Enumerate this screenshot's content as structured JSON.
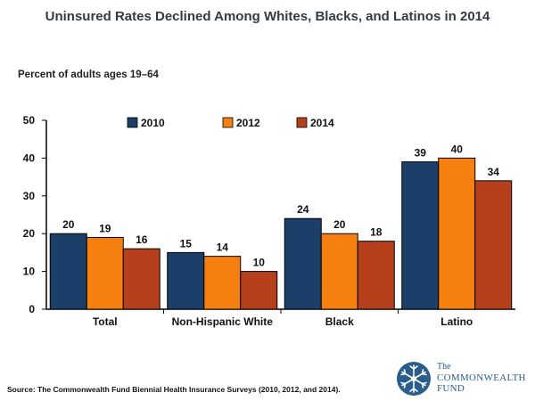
{
  "chart_data": {
    "type": "bar",
    "title": "Uninsured Rates Declined Among Whites, Blacks, and Latinos in 2014",
    "subtitle": "Percent of adults ages 19–64",
    "categories": [
      "Total",
      "Non-Hispanic White",
      "Black",
      "Latino"
    ],
    "series": [
      {
        "name": "2010",
        "color": "#1b3f68",
        "values": [
          20,
          15,
          24,
          39
        ]
      },
      {
        "name": "2012",
        "color": "#f57f0f",
        "values": [
          19,
          14,
          20,
          40
        ]
      },
      {
        "name": "2014",
        "color": "#b5401b",
        "values": [
          16,
          10,
          18,
          34
        ]
      }
    ],
    "ylim": [
      0,
      50
    ],
    "yticks": [
      0,
      10,
      20,
      30,
      40,
      50
    ],
    "xlabel": "",
    "ylabel": "",
    "legend_position": "top",
    "grid": false
  },
  "source": "Source: The Commonwealth Fund Biennial Health Insurance Surveys (2010, 2012, and 2014).",
  "logo": {
    "the": "The",
    "line1": "COMMONWEALTH",
    "line2": "FUND"
  }
}
